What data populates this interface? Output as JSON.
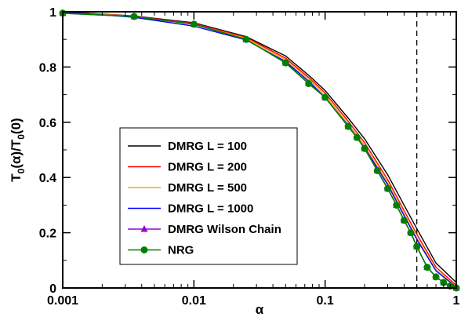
{
  "chart_data": {
    "type": "line",
    "xlabel": "α",
    "ylabel": "T0(α)/T0(0)",
    "ylabel_parts": {
      "base": "T",
      "sub1": "0",
      "mid": "(α)/T",
      "sub2": "0",
      "tail": "(0)"
    },
    "xscale": "log",
    "xlim": [
      0.001,
      1
    ],
    "ylim": [
      0,
      1
    ],
    "xticks": [
      0.001,
      0.01,
      0.1,
      1
    ],
    "xtick_labels": [
      "0.001",
      "0.01",
      "0.1",
      "1"
    ],
    "yticks": [
      0,
      0.2,
      0.4,
      0.6,
      0.8,
      1
    ],
    "ytick_labels": [
      "0",
      "0.2",
      "0.4",
      "0.6",
      "0.8",
      "1"
    ],
    "grid": false,
    "legend_position": "center-left",
    "annotations": [
      {
        "type": "vertical-dashed-line",
        "x": 0.5
      }
    ],
    "series": [
      {
        "name": "DMRG L = 100",
        "color": "#000000",
        "marker": "none",
        "x": [
          0.001,
          0.0035,
          0.01,
          0.025,
          0.05,
          0.075,
          0.1,
          0.15,
          0.2,
          0.3,
          0.4,
          0.5,
          0.7,
          1.0
        ],
        "y": [
          1.0,
          0.985,
          0.96,
          0.91,
          0.84,
          0.77,
          0.715,
          0.615,
          0.54,
          0.41,
          0.3,
          0.215,
          0.09,
          0.02
        ]
      },
      {
        "name": "DMRG L = 200",
        "color": "#ff0000",
        "marker": "none",
        "x": [
          0.001,
          0.0035,
          0.01,
          0.025,
          0.05,
          0.075,
          0.1,
          0.15,
          0.2,
          0.3,
          0.4,
          0.5,
          0.7,
          1.0
        ],
        "y": [
          1.0,
          0.984,
          0.958,
          0.907,
          0.832,
          0.762,
          0.706,
          0.604,
          0.526,
          0.392,
          0.28,
          0.195,
          0.075,
          0.01
        ]
      },
      {
        "name": "DMRG L = 500",
        "color": "#ffa500",
        "marker": "none",
        "x": [
          0.001,
          0.0035,
          0.01,
          0.025,
          0.05,
          0.075,
          0.1,
          0.15,
          0.2,
          0.3,
          0.4,
          0.5,
          0.7,
          1.0
        ],
        "y": [
          1.0,
          0.983,
          0.955,
          0.904,
          0.826,
          0.755,
          0.698,
          0.595,
          0.516,
          0.381,
          0.268,
          0.182,
          0.066,
          0.005
        ]
      },
      {
        "name": "DMRG L = 1000",
        "color": "#0000ff",
        "marker": "none",
        "x": [
          0.001,
          0.0035,
          0.01,
          0.025,
          0.05,
          0.075,
          0.1,
          0.15,
          0.2,
          0.3,
          0.4,
          0.5,
          0.7,
          1.0
        ],
        "y": [
          1.0,
          0.98,
          0.948,
          0.898,
          0.82,
          0.748,
          0.69,
          0.588,
          0.508,
          0.374,
          0.262,
          0.176,
          0.062,
          0.003
        ]
      },
      {
        "name": "DMRG Wilson Chain",
        "color": "#9400d3",
        "marker": "triangle",
        "x": [
          0.001,
          0.0035,
          0.01,
          0.025,
          0.05,
          0.075,
          0.1,
          0.15,
          0.175,
          0.2,
          0.25,
          0.3,
          0.35,
          0.4,
          0.45,
          0.5,
          0.6,
          0.7,
          0.8,
          0.9,
          1.0
        ],
        "y": [
          0.995,
          0.983,
          0.955,
          0.9,
          0.815,
          0.74,
          0.69,
          0.585,
          0.545,
          0.505,
          0.425,
          0.36,
          0.3,
          0.245,
          0.2,
          0.15,
          0.075,
          0.04,
          0.02,
          0.007,
          0.0
        ]
      },
      {
        "name": "NRG",
        "color": "#008000",
        "marker": "circle",
        "x": [
          0.001,
          0.0035,
          0.01,
          0.025,
          0.05,
          0.075,
          0.1,
          0.15,
          0.175,
          0.2,
          0.25,
          0.3,
          0.35,
          0.4,
          0.45,
          0.5,
          0.6,
          0.7,
          0.8,
          0.9,
          1.0
        ],
        "y": [
          0.995,
          0.983,
          0.955,
          0.9,
          0.815,
          0.74,
          0.69,
          0.585,
          0.545,
          0.505,
          0.425,
          0.36,
          0.3,
          0.245,
          0.2,
          0.15,
          0.075,
          0.04,
          0.02,
          0.007,
          0.0
        ]
      }
    ]
  }
}
